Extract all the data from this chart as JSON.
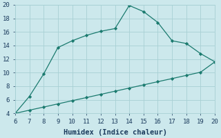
{
  "title": "",
  "xlabel": "Humidex (Indice chaleur)",
  "x_upper": [
    6,
    7,
    8,
    9,
    10,
    11,
    12,
    13,
    14,
    15,
    16,
    17,
    18,
    19,
    20
  ],
  "y_upper": [
    4.0,
    6.5,
    9.8,
    13.7,
    14.7,
    15.5,
    16.1,
    16.5,
    19.9,
    19.0,
    17.4,
    14.7,
    14.3,
    12.8,
    11.6
  ],
  "x_lower": [
    6,
    7,
    8,
    9,
    10,
    11,
    12,
    13,
    14,
    15,
    16,
    17,
    18,
    19,
    20
  ],
  "y_lower": [
    4.0,
    4.47,
    4.93,
    5.4,
    5.87,
    6.33,
    6.8,
    7.27,
    7.73,
    8.2,
    8.67,
    9.13,
    9.6,
    10.07,
    11.6
  ],
  "line_color": "#1a7a6e",
  "bg_color": "#cce8ec",
  "grid_color": "#a8d0d4",
  "xlim": [
    6,
    20
  ],
  "ylim": [
    4,
    20
  ],
  "xticks": [
    6,
    7,
    8,
    9,
    10,
    11,
    12,
    13,
    14,
    15,
    16,
    17,
    18,
    19,
    20
  ],
  "yticks": [
    4,
    6,
    8,
    10,
    12,
    14,
    16,
    18,
    20
  ],
  "tick_fontsize": 6.5,
  "xlabel_fontsize": 7.5
}
